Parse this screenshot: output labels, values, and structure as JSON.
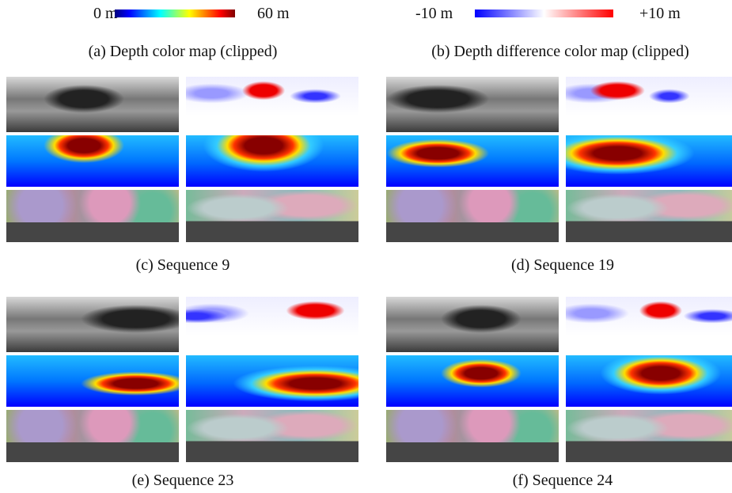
{
  "colorbars": [
    {
      "min_label": "0 m",
      "max_label": "60 m",
      "caption": "(a) Depth color map (clipped)"
    },
    {
      "min_label": "-10 m",
      "max_label": "+10 m",
      "caption": "(b) Depth difference color map (clipped)"
    }
  ],
  "sequences": [
    {
      "caption": "(c) Sequence 9"
    },
    {
      "caption": "(d) Sequence 19"
    },
    {
      "caption": "(e) Sequence 23"
    },
    {
      "caption": "(f) Sequence 24"
    }
  ]
}
